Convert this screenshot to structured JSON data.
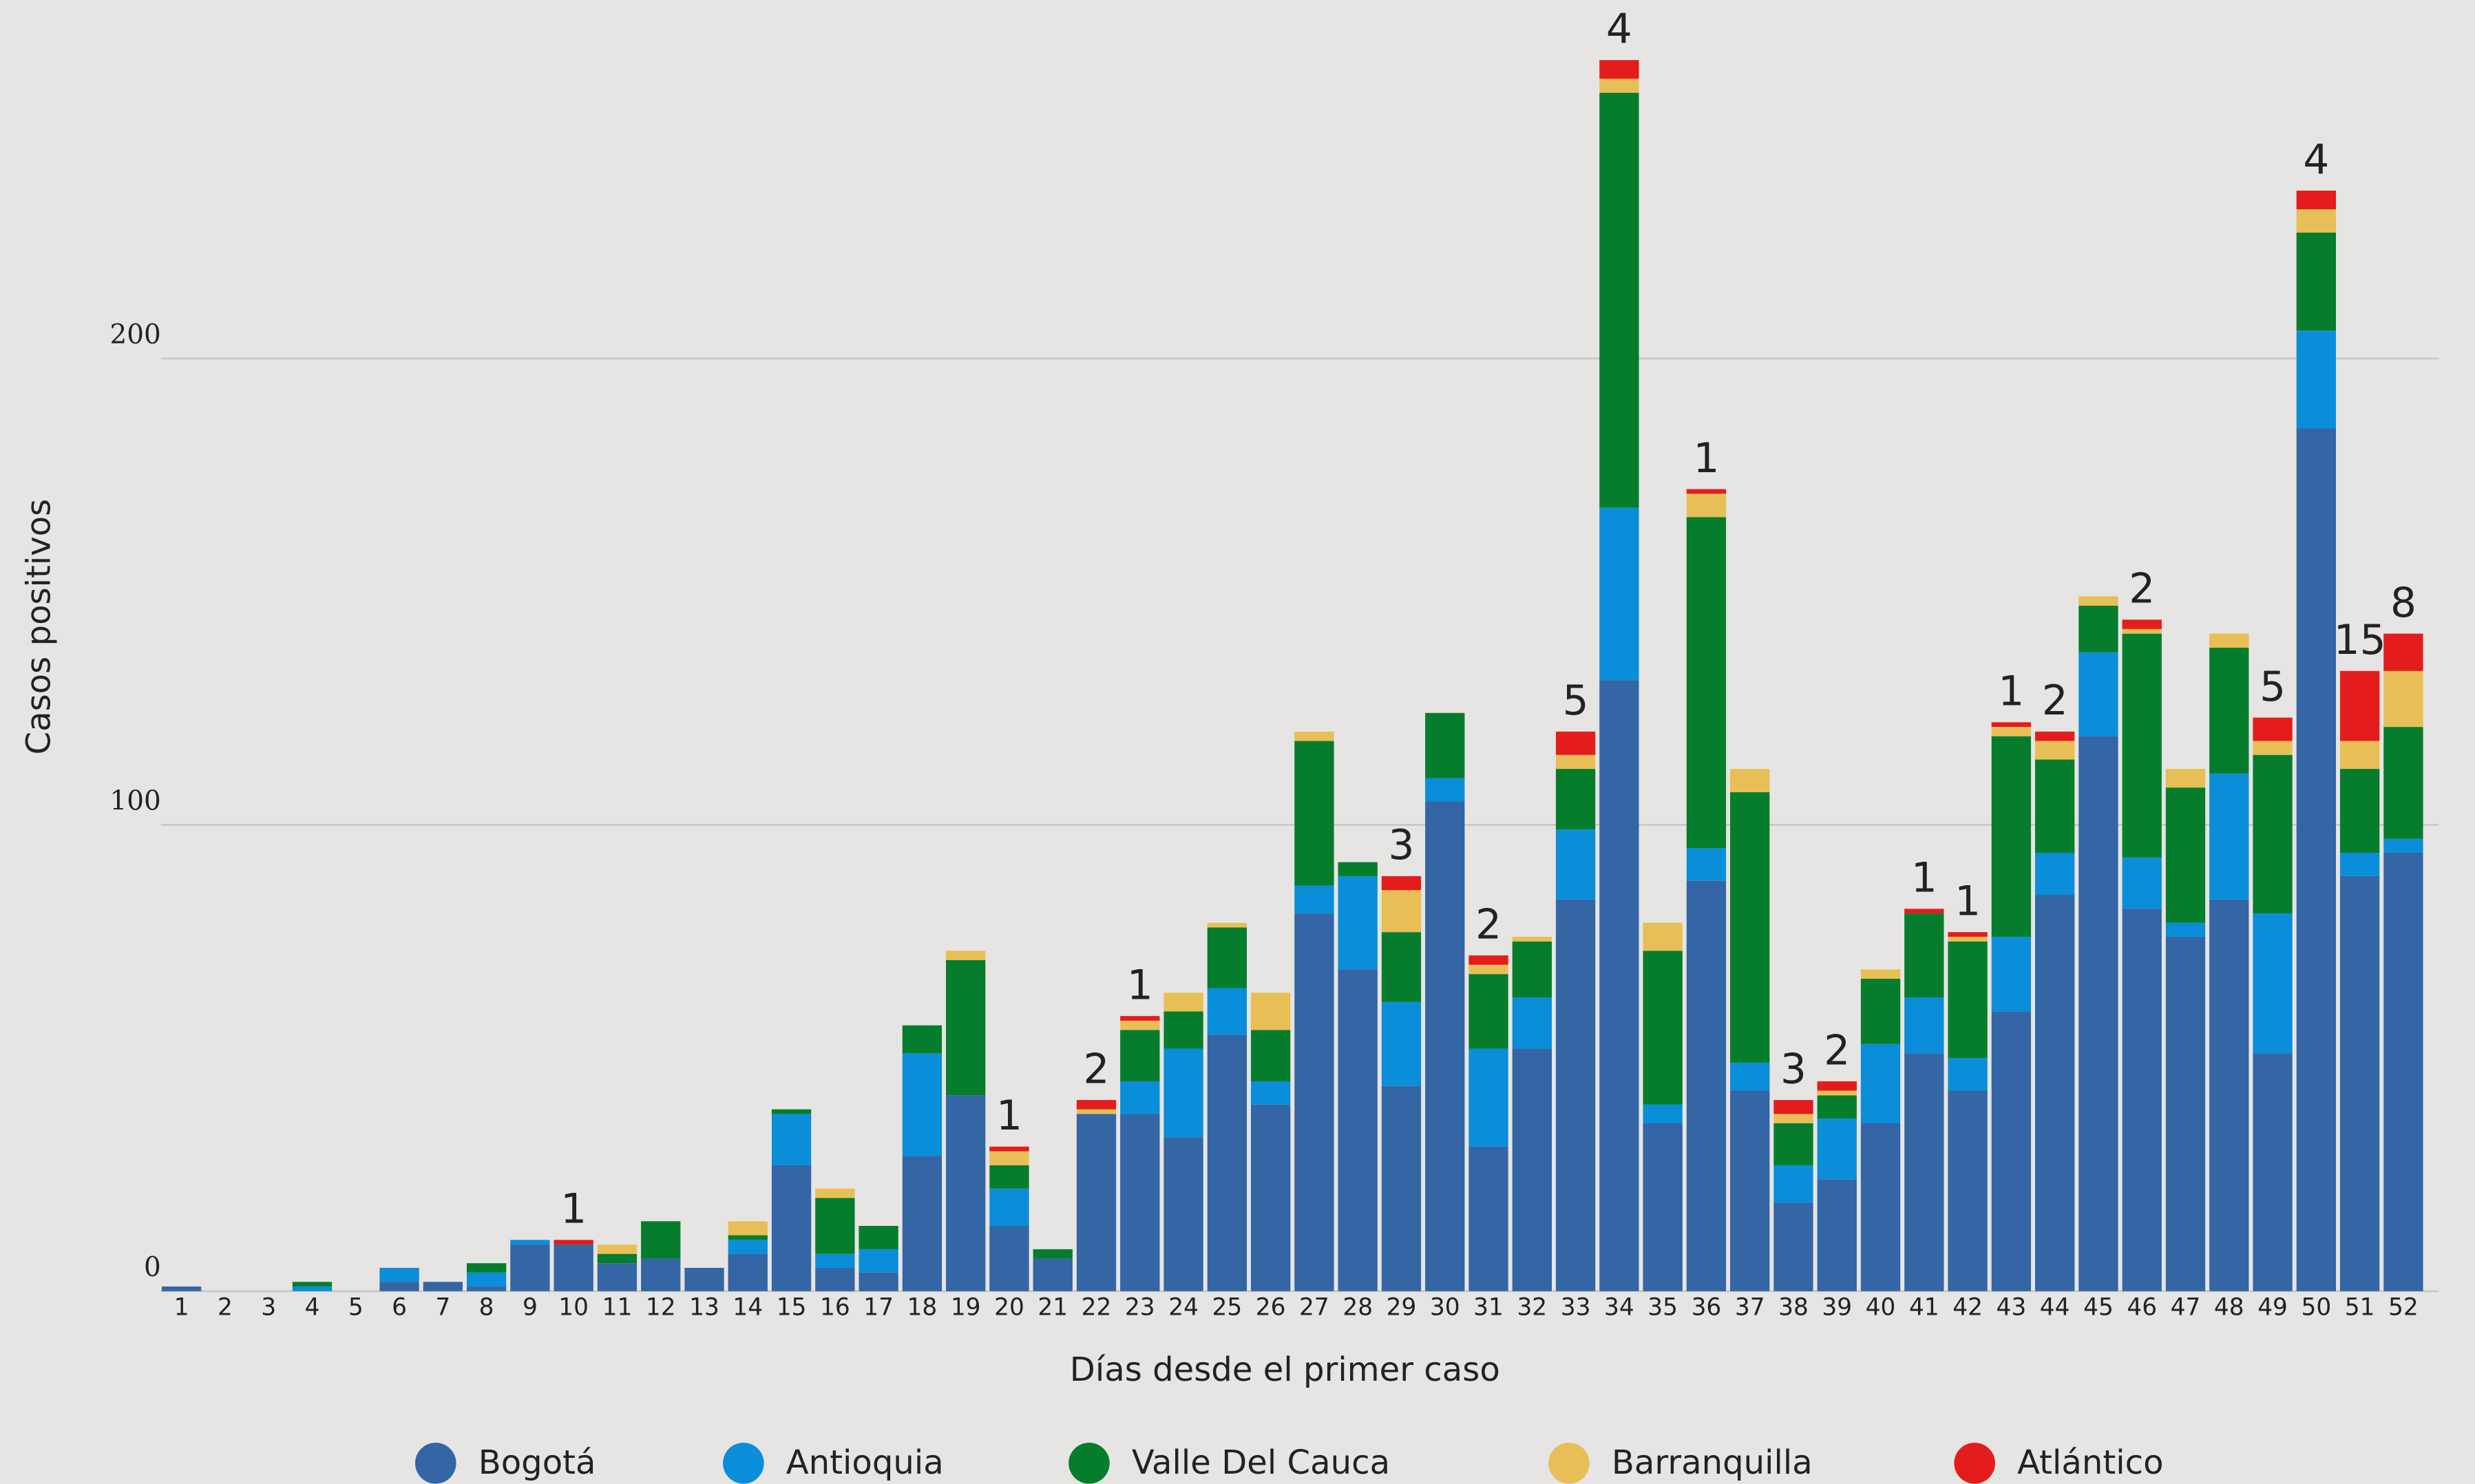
{
  "chart_data": {
    "type": "stacked_bar",
    "xlabel": "Días desde el primer caso",
    "ylabel": "Casos positivos",
    "categories": [
      "1",
      "2",
      "3",
      "4",
      "5",
      "6",
      "7",
      "8",
      "9",
      "10",
      "11",
      "12",
      "13",
      "14",
      "15",
      "16",
      "17",
      "18",
      "19",
      "20",
      "21",
      "22",
      "23",
      "24",
      "25",
      "26",
      "27",
      "28",
      "29",
      "30",
      "31",
      "32",
      "33",
      "34",
      "35",
      "36",
      "37",
      "38",
      "39",
      "40",
      "41",
      "42",
      "43",
      "44",
      "45",
      "46",
      "47",
      "48",
      "49",
      "50",
      "51",
      "52"
    ],
    "series": [
      {
        "name": "Bogotá",
        "color": "#3465a4",
        "values": [
          1,
          0,
          0,
          0,
          0,
          2,
          2,
          1,
          10,
          10,
          6,
          7,
          5,
          8,
          27,
          5,
          4,
          29,
          42,
          14,
          7,
          38,
          38,
          33,
          55,
          40,
          81,
          69,
          44,
          105,
          31,
          52,
          84,
          131,
          36,
          88,
          43,
          19,
          24,
          36,
          51,
          43,
          60,
          85,
          119,
          82,
          76,
          84,
          51,
          185,
          89,
          94
        ]
      },
      {
        "name": "Antioquia",
        "color": "#0a8ed9",
        "values": [
          0,
          0,
          0,
          1,
          0,
          3,
          0,
          3,
          1,
          0,
          0,
          0,
          0,
          3,
          11,
          3,
          5,
          22,
          0,
          8,
          0,
          0,
          7,
          19,
          10,
          5,
          6,
          20,
          18,
          5,
          21,
          11,
          15,
          37,
          4,
          7,
          6,
          8,
          13,
          17,
          12,
          7,
          16,
          9,
          18,
          11,
          3,
          27,
          30,
          21,
          5,
          3
        ]
      },
      {
        "name": "Valle Del Cauca",
        "color": "#067d2c",
        "values": [
          0,
          0,
          0,
          1,
          0,
          0,
          0,
          2,
          0,
          0,
          2,
          8,
          0,
          1,
          1,
          12,
          5,
          6,
          29,
          5,
          2,
          0,
          11,
          8,
          13,
          11,
          31,
          3,
          15,
          14,
          16,
          12,
          13,
          89,
          33,
          71,
          58,
          9,
          5,
          14,
          18,
          25,
          43,
          20,
          10,
          48,
          29,
          27,
          34,
          21,
          18,
          24
        ]
      },
      {
        "name": "Barranquilla",
        "color": "#e8bf56",
        "values": [
          0,
          0,
          0,
          0,
          0,
          0,
          0,
          0,
          0,
          0,
          2,
          0,
          0,
          3,
          0,
          2,
          0,
          0,
          2,
          3,
          0,
          1,
          2,
          4,
          1,
          8,
          2,
          0,
          9,
          0,
          2,
          1,
          3,
          3,
          6,
          5,
          5,
          2,
          1,
          2,
          0,
          1,
          2,
          4,
          2,
          1,
          4,
          3,
          3,
          5,
          6,
          12
        ]
      },
      {
        "name": "Atlántico",
        "color": "#e41c1c",
        "values": [
          0,
          0,
          0,
          0,
          0,
          0,
          0,
          0,
          0,
          1,
          0,
          0,
          0,
          0,
          0,
          0,
          0,
          0,
          0,
          1,
          0,
          2,
          1,
          0,
          0,
          0,
          0,
          0,
          3,
          0,
          2,
          0,
          5,
          4,
          0,
          1,
          0,
          3,
          2,
          0,
          1,
          1,
          1,
          2,
          0,
          2,
          0,
          0,
          5,
          4,
          15,
          8
        ]
      }
    ],
    "ylim": [
      0,
      275
    ],
    "yticks": [
      0,
      100,
      200
    ],
    "grid": true,
    "legend": "bottom"
  }
}
